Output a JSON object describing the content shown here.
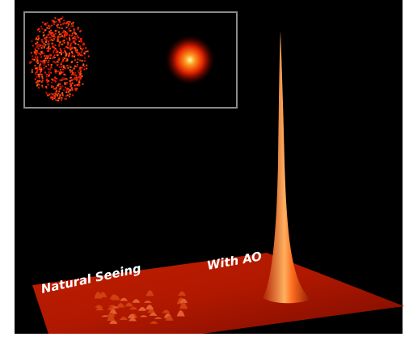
{
  "labels": {
    "natural_seeing": "Natural Seeing",
    "with_ao": "With AO"
  }
}
